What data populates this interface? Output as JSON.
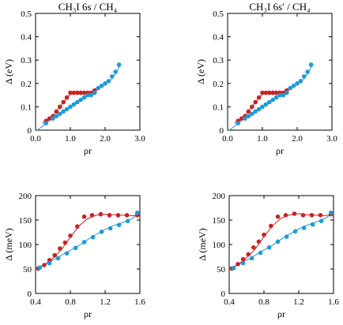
{
  "colors": {
    "red": "#cc2222",
    "blue": "#1f9ad6"
  },
  "chart_data": [
    {
      "type": "scatter",
      "title": "CH₃I 6s / CH₄",
      "xlabel": "ρr",
      "ylabel": "Δ (eV)",
      "xlim": [
        0,
        3.0
      ],
      "ylim": [
        0,
        0.5
      ],
      "xticks": [
        "0.0",
        "1.0",
        "2.0",
        "3.0"
      ],
      "yticks": [
        "0",
        "0.1",
        "0.2",
        "0.3",
        "0.4",
        "0.5"
      ],
      "grid": false,
      "series": [
        {
          "color": "red",
          "marker": "circle",
          "x": [
            0.3,
            0.4,
            0.5,
            0.6,
            0.7,
            0.8,
            0.9,
            1.0,
            1.1,
            1.2,
            1.3,
            1.4,
            1.5,
            1.6,
            1.7
          ],
          "y": [
            0.04,
            0.05,
            0.06,
            0.08,
            0.1,
            0.12,
            0.14,
            0.16,
            0.16,
            0.16,
            0.16,
            0.16,
            0.16,
            0.16,
            0.17
          ]
        },
        {
          "color": "blue",
          "marker": "circle",
          "x": [
            0.3,
            0.5,
            0.6,
            0.7,
            0.8,
            0.9,
            1.0,
            1.1,
            1.2,
            1.3,
            1.4,
            1.5,
            1.6,
            1.7,
            1.8,
            1.9,
            2.0,
            2.1,
            2.2,
            2.3,
            2.4
          ],
          "y": [
            0.03,
            0.05,
            0.06,
            0.07,
            0.08,
            0.09,
            0.1,
            0.11,
            0.12,
            0.13,
            0.14,
            0.15,
            0.15,
            0.16,
            0.18,
            0.19,
            0.2,
            0.21,
            0.23,
            0.25,
            0.28
          ]
        }
      ],
      "lines": [
        {
          "color": "red",
          "x": [
            0.2,
            0.4,
            0.6,
            0.8,
            1.0,
            1.2,
            1.4,
            1.6,
            1.7
          ],
          "y": [
            0.03,
            0.05,
            0.08,
            0.12,
            0.155,
            0.16,
            0.16,
            0.162,
            0.17
          ]
        },
        {
          "color": "blue",
          "x": [
            0.05,
            0.4,
            0.8,
            1.2,
            1.6,
            2.0,
            2.2,
            2.45
          ],
          "y": [
            0.0,
            0.04,
            0.08,
            0.12,
            0.155,
            0.2,
            0.22,
            0.28
          ]
        }
      ]
    },
    {
      "type": "scatter",
      "title": "CH₃I 6s′ / CH₄",
      "xlabel": "ρr",
      "ylabel": "Δ (eV)",
      "xlim": [
        0,
        3.0
      ],
      "ylim": [
        0,
        0.5
      ],
      "xticks": [
        "0.0",
        "1.0",
        "2.0",
        "3.0"
      ],
      "yticks": [
        "0",
        "0.1",
        "0.2",
        "0.3",
        "0.4",
        "0.5"
      ],
      "grid": false,
      "series": [
        {
          "color": "red",
          "marker": "circle",
          "x": [
            0.3,
            0.4,
            0.5,
            0.6,
            0.7,
            0.8,
            0.9,
            1.0,
            1.1,
            1.2,
            1.3,
            1.4,
            1.5,
            1.6,
            1.7
          ],
          "y": [
            0.04,
            0.05,
            0.06,
            0.08,
            0.1,
            0.12,
            0.14,
            0.16,
            0.16,
            0.16,
            0.16,
            0.16,
            0.16,
            0.16,
            0.17
          ]
        },
        {
          "color": "blue",
          "marker": "circle",
          "x": [
            0.3,
            0.5,
            0.6,
            0.7,
            0.8,
            0.9,
            1.0,
            1.1,
            1.2,
            1.3,
            1.4,
            1.5,
            1.6,
            1.7,
            1.8,
            1.9,
            2.0,
            2.1,
            2.2,
            2.3,
            2.4
          ],
          "y": [
            0.03,
            0.05,
            0.06,
            0.07,
            0.08,
            0.09,
            0.1,
            0.11,
            0.12,
            0.13,
            0.14,
            0.15,
            0.15,
            0.16,
            0.18,
            0.19,
            0.2,
            0.21,
            0.23,
            0.25,
            0.28
          ]
        }
      ],
      "lines": [
        {
          "color": "red",
          "x": [
            0.2,
            0.4,
            0.6,
            0.8,
            1.0,
            1.2,
            1.4,
            1.6,
            1.7
          ],
          "y": [
            0.03,
            0.05,
            0.08,
            0.12,
            0.155,
            0.16,
            0.16,
            0.162,
            0.17
          ]
        },
        {
          "color": "blue",
          "x": [
            0.05,
            0.4,
            0.8,
            1.2,
            1.6,
            2.0,
            2.2,
            2.45
          ],
          "y": [
            0.0,
            0.04,
            0.08,
            0.12,
            0.155,
            0.2,
            0.22,
            0.28
          ]
        }
      ]
    },
    {
      "type": "scatter",
      "title": "",
      "xlabel": "ρr",
      "ylabel": "Δ (meV)",
      "xlim": [
        0.4,
        1.6
      ],
      "ylim": [
        0,
        200
      ],
      "xticks": [
        "0.4",
        "0.8",
        "1.2",
        "1.6"
      ],
      "yticks": [
        "0",
        "50",
        "100",
        "150",
        "200"
      ],
      "grid": false,
      "series": [
        {
          "color": "red",
          "marker": "circle",
          "x": [
            0.43,
            0.5,
            0.56,
            0.62,
            0.68,
            0.74,
            0.8,
            0.88,
            0.96,
            1.05,
            1.15,
            1.25,
            1.35,
            1.45,
            1.57
          ],
          "y": [
            51,
            58,
            68,
            78,
            92,
            104,
            118,
            137,
            157,
            160,
            162,
            160,
            160,
            160,
            160
          ]
        },
        {
          "color": "blue",
          "marker": "circle",
          "x": [
            0.45,
            0.56,
            0.66,
            0.76,
            0.86,
            0.96,
            1.06,
            1.16,
            1.26,
            1.36,
            1.46,
            1.57
          ],
          "y": [
            53,
            62,
            72,
            82,
            93,
            105,
            115,
            126,
            133,
            140,
            148,
            165
          ]
        }
      ],
      "lines": [
        {
          "color": "red",
          "x": [
            0.4,
            0.5,
            0.6,
            0.7,
            0.8,
            0.9,
            1.0,
            1.1,
            1.2,
            1.3,
            1.4,
            1.5,
            1.6
          ],
          "y": [
            50,
            58,
            72,
            90,
            115,
            138,
            153,
            160,
            162,
            161,
            160,
            159,
            160
          ]
        },
        {
          "color": "blue",
          "x": [
            0.4,
            0.5,
            0.6,
            0.7,
            0.8,
            0.9,
            1.0,
            1.1,
            1.2,
            1.3,
            1.4,
            1.5,
            1.6
          ],
          "y": [
            50,
            58,
            68,
            78,
            88,
            98,
            110,
            121,
            131,
            139,
            145,
            152,
            165
          ]
        }
      ]
    },
    {
      "type": "scatter",
      "title": "",
      "xlabel": "ρr",
      "ylabel": "Δ (meV)",
      "xlim": [
        0.4,
        1.6
      ],
      "ylim": [
        0,
        200
      ],
      "xticks": [
        "0.4",
        "0.8",
        "1.2",
        "1.6"
      ],
      "yticks": [
        "0",
        "50",
        "100",
        "150",
        "200"
      ],
      "grid": false,
      "series": [
        {
          "color": "red",
          "marker": "circle",
          "x": [
            0.43,
            0.5,
            0.56,
            0.62,
            0.68,
            0.74,
            0.8,
            0.88,
            0.96,
            1.05,
            1.15,
            1.25,
            1.35,
            1.45,
            1.57
          ],
          "y": [
            51,
            60,
            70,
            80,
            94,
            106,
            120,
            138,
            157,
            160,
            163,
            160,
            160,
            160,
            162
          ]
        },
        {
          "color": "blue",
          "marker": "circle",
          "x": [
            0.45,
            0.56,
            0.66,
            0.76,
            0.86,
            0.96,
            1.06,
            1.16,
            1.26,
            1.36,
            1.46,
            1.57
          ],
          "y": [
            52,
            62,
            72,
            83,
            94,
            106,
            116,
            127,
            134,
            141,
            148,
            165
          ]
        }
      ],
      "lines": [
        {
          "color": "red",
          "x": [
            0.4,
            0.5,
            0.6,
            0.7,
            0.8,
            0.9,
            1.0,
            1.1,
            1.2,
            1.3,
            1.4,
            1.5,
            1.6
          ],
          "y": [
            50,
            59,
            73,
            91,
            116,
            139,
            154,
            161,
            163,
            161,
            160,
            159,
            162
          ]
        },
        {
          "color": "blue",
          "x": [
            0.4,
            0.5,
            0.6,
            0.7,
            0.8,
            0.9,
            1.0,
            1.1,
            1.2,
            1.3,
            1.4,
            1.5,
            1.6
          ],
          "y": [
            50,
            58,
            68,
            78,
            89,
            99,
            111,
            122,
            132,
            140,
            146,
            153,
            165
          ]
        }
      ]
    }
  ]
}
